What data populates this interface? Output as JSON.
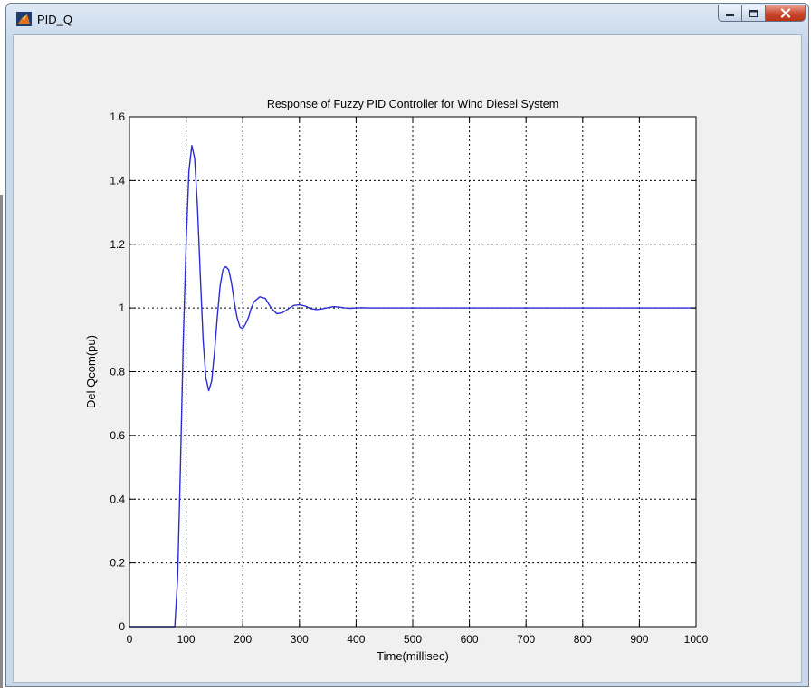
{
  "window": {
    "title": "PID_Q",
    "icon": "matlab-figure-icon",
    "buttons": [
      "minimize-icon",
      "maximize-icon",
      "close-icon"
    ]
  },
  "chart_data": {
    "type": "line",
    "title": "Response of Fuzzy PID Controller for Wind Diesel System",
    "xlabel": "Time(millisec)",
    "ylabel": "Del Qcom(pu)",
    "xlim": [
      0,
      1000
    ],
    "ylim": [
      0,
      1.6
    ],
    "xticks": [
      0,
      100,
      200,
      300,
      400,
      500,
      600,
      700,
      800,
      900,
      1000
    ],
    "yticks": [
      0,
      0.2,
      0.4,
      0.6,
      0.8,
      1,
      1.2,
      1.4,
      1.6
    ],
    "xtick_labels": [
      "0",
      "100",
      "200",
      "300",
      "400",
      "500",
      "600",
      "700",
      "800",
      "900",
      "1000"
    ],
    "ytick_labels": [
      "0",
      "0.2",
      "0.4",
      "0.6",
      "0.8",
      "1",
      "1.2",
      "1.4",
      "1.6"
    ],
    "grid": true,
    "line_color": "#2b2bd6",
    "series": [
      {
        "x": [
          0,
          80,
          85,
          90,
          95,
          100,
          105,
          110,
          115,
          120,
          125,
          130,
          135,
          140,
          145,
          150,
          155,
          160,
          165,
          170,
          175,
          180,
          185,
          190,
          195,
          200,
          205,
          210,
          215,
          220,
          230,
          240,
          250,
          260,
          270,
          280,
          290,
          300,
          310,
          320,
          330,
          340,
          350,
          360,
          370,
          380,
          390,
          400,
          410,
          420,
          440,
          1000
        ],
        "y": [
          0,
          0,
          0.15,
          0.5,
          0.9,
          1.2,
          1.43,
          1.51,
          1.47,
          1.32,
          1.1,
          0.9,
          0.78,
          0.74,
          0.77,
          0.86,
          0.97,
          1.07,
          1.12,
          1.13,
          1.12,
          1.08,
          1.02,
          0.97,
          0.94,
          0.935,
          0.95,
          0.97,
          1.0,
          1.02,
          1.035,
          1.03,
          1.0,
          0.982,
          0.985,
          0.997,
          1.008,
          1.01,
          1.006,
          0.998,
          0.995,
          0.997,
          1.001,
          1.004,
          1.003,
          1.0,
          0.999,
          1.0,
          1.001,
          1.0,
          1.0,
          1.0
        ]
      }
    ]
  }
}
